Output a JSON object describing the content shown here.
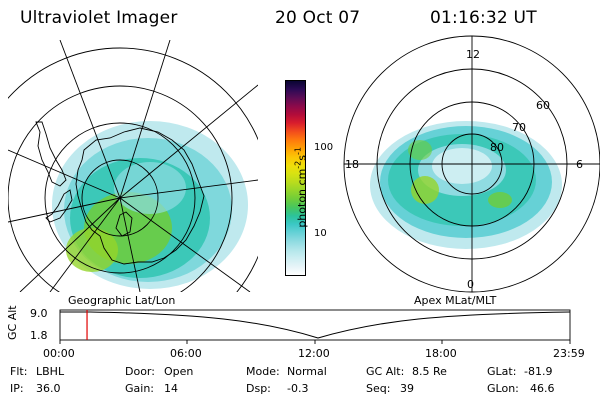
{
  "header": {
    "instrument": "Ultraviolet Imager",
    "date": "20 Oct 07",
    "time": "01:16:32 UT"
  },
  "colorbar": {
    "label": "photon cm",
    "label_sup1": "-2",
    "label_s": "s",
    "label_sup2": "-1",
    "ticks": [
      "100",
      "10"
    ],
    "colors": [
      "#ffffff",
      "#e6f4f8",
      "#cdeef2",
      "#b2e6ea",
      "#8fdbe1",
      "#66d1d6",
      "#3cc8c6",
      "#2cc39b",
      "#46c65f",
      "#6fcd3a",
      "#95d52a",
      "#b9dc1d",
      "#d7e212",
      "#f0de0a",
      "#fcc505",
      "#ffa005",
      "#ff7a0d",
      "#f24d1c",
      "#d91e2c",
      "#b30c3a",
      "#8c0a4a",
      "#5c0c55",
      "#2c0a55",
      "#0a0533"
    ]
  },
  "left_panel": {
    "caption": "Geographic Lat/Lon"
  },
  "right_panel": {
    "caption": "Apex MLat/MLT",
    "mlt_labels": [
      "12",
      "18",
      "6",
      "0"
    ],
    "mlat_labels": [
      "60",
      "70",
      "80"
    ]
  },
  "timeline": {
    "ylabel": "GC Alt",
    "y_ticks": [
      "9.0",
      "1.8"
    ],
    "x_ticks": [
      "00:00",
      "06:00",
      "12:00",
      "18:00",
      "23:59"
    ],
    "current_time_fraction": 0.053
  },
  "status": {
    "flt_label": "Flt:",
    "flt_value": "LBHL",
    "ip_label": "IP:",
    "ip_value": "36.0",
    "door_label": "Door:",
    "door_value": "Open",
    "gain_label": "Gain:",
    "gain_value": "14",
    "mode_label": "Mode:",
    "mode_value": "Normal",
    "dsp_label": "Dsp:",
    "dsp_value": "-0.3",
    "gcalt_label": "GC Alt:",
    "gcalt_value": "8.5 Re",
    "seq_label": "Seq:",
    "seq_value": "39",
    "glat_label": "GLat:",
    "glat_value": "-81.9",
    "glon_label": "GLon:",
    "glon_value": "46.6"
  }
}
